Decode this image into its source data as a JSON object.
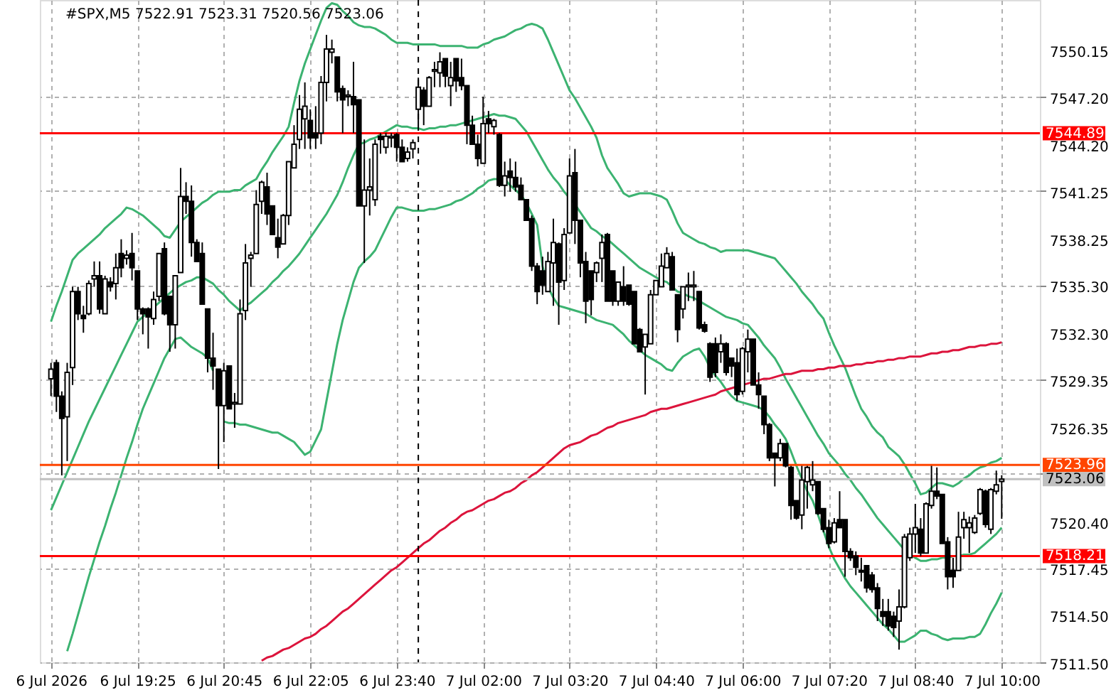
{
  "chart_data": {
    "type": "candlestick",
    "title": "#SPX,M5 7522.91 7523.31 7520.56 7523.06",
    "categories": [
      "6 Jul 2026",
      null,
      null,
      null,
      null,
      null,
      null,
      null,
      null,
      null,
      null,
      null,
      null,
      null,
      null,
      null,
      "6 Jul 19:25",
      null,
      null,
      null,
      null,
      null,
      null,
      null,
      null,
      null,
      null,
      null,
      null,
      null,
      null,
      null,
      "6 Jul 20:45",
      null,
      null,
      null,
      null,
      null,
      null,
      null,
      null,
      null,
      null,
      null,
      null,
      null,
      null,
      null,
      "6 Jul 22:05",
      null,
      null,
      null,
      null,
      null,
      null,
      null,
      null,
      null,
      null,
      null,
      null,
      null,
      null,
      null,
      "6 Jul 23:40",
      null,
      null,
      null,
      null,
      null,
      null,
      null,
      null,
      null,
      null,
      null,
      null,
      null,
      null,
      null,
      "7 Jul 02:00",
      null,
      null,
      null,
      null,
      null,
      null,
      null,
      null,
      null,
      null,
      null,
      null,
      null,
      null,
      null,
      "7 Jul 03:20",
      null,
      null,
      null,
      null,
      null,
      null,
      null,
      null,
      null,
      null,
      null,
      null,
      null,
      null,
      null,
      "7 Jul 04:40",
      null,
      null,
      null,
      null,
      null,
      null,
      null,
      null,
      null,
      null,
      null,
      null,
      null,
      null,
      null,
      "7 Jul 06:00",
      null,
      null,
      null,
      null,
      null,
      null,
      null,
      null,
      null,
      null,
      null,
      null,
      null,
      null,
      null,
      "7 Jul 07:20",
      null,
      null,
      null,
      null,
      null,
      null,
      null,
      null,
      null,
      null,
      null,
      null,
      null,
      null,
      null,
      "7 Jul 08:40",
      null,
      null,
      null,
      null,
      null,
      null,
      null,
      null,
      null,
      null,
      null,
      null,
      null,
      null,
      null,
      "7 Jul 10:00"
    ],
    "ohlc": [
      [
        7529.4,
        7530.4,
        7528.3,
        7530.0
      ],
      [
        7530.4,
        7530.6,
        7527.3,
        7528.3
      ],
      [
        7528.3,
        7528.6,
        7523.3,
        7526.9
      ],
      [
        7527.0,
        7530.4,
        7524.2,
        7529.8
      ],
      [
        7530.1,
        7535.2,
        7529.0,
        7534.9
      ],
      [
        7534.9,
        7535.2,
        7533.1,
        7533.5
      ],
      [
        7533.4,
        7534.0,
        7532.3,
        7533.2
      ],
      [
        7533.5,
        7535.6,
        7533.4,
        7535.4
      ],
      [
        7535.7,
        7536.8,
        7535.2,
        7535.9
      ],
      [
        7535.9,
        7536.8,
        7533.5,
        7533.8
      ],
      [
        7533.5,
        7535.9,
        7533.5,
        7535.7
      ],
      [
        7535.5,
        7535.8,
        7534.9,
        7535.2
      ],
      [
        7535.4,
        7537.3,
        7534.4,
        7536.4
      ],
      [
        7537.3,
        7538.2,
        7535.8,
        7536.4
      ],
      [
        7537.0,
        7537.5,
        7536.6,
        7537.2
      ],
      [
        7537.3,
        7538.6,
        7535.6,
        7536.4
      ],
      [
        7536.2,
        7536.2,
        7533.1,
        7533.8
      ],
      [
        7533.8,
        7533.9,
        7532.2,
        7533.5
      ],
      [
        7533.8,
        7533.9,
        7531.3,
        7533.3
      ],
      [
        7533.2,
        7534.9,
        7532.8,
        7534.4
      ],
      [
        7534.6,
        7537.3,
        7534.3,
        7537.3
      ],
      [
        7537.6,
        7538.0,
        7533.4,
        7533.5
      ],
      [
        7534.6,
        7534.6,
        7531.1,
        7532.8
      ],
      [
        7532.8,
        7535.9,
        7531.3,
        7535.9
      ],
      [
        7536.1,
        7542.7,
        7536.1,
        7540.9
      ],
      [
        7540.9,
        7541.8,
        7539.8,
        7540.6
      ],
      [
        7540.6,
        7541.6,
        7537.1,
        7538.0
      ],
      [
        7538.0,
        7538.2,
        7536.8,
        7536.8
      ],
      [
        7537.3,
        7538.0,
        7534.1,
        7534.1
      ],
      [
        7533.8,
        7533.8,
        7529.8,
        7530.7
      ],
      [
        7530.7,
        7532.3,
        7528.7,
        7530.2
      ],
      [
        7530.0,
        7530.0,
        7523.7,
        7527.7
      ],
      [
        7527.7,
        7530.4,
        7525.4,
        7529.9
      ],
      [
        7530.2,
        7530.2,
        7527.5,
        7527.5
      ],
      [
        7527.8,
        7528.5,
        7526.3,
        7527.9
      ],
      [
        7527.8,
        7534.4,
        7527.8,
        7533.5
      ],
      [
        7533.7,
        7537.9,
        7533.1,
        7536.7
      ],
      [
        7537.0,
        7537.4,
        7535.2,
        7537.2
      ],
      [
        7537.3,
        7541.3,
        7537.3,
        7540.4
      ],
      [
        7540.6,
        7541.9,
        7539.8,
        7541.8
      ],
      [
        7541.5,
        7542.4,
        7539.1,
        7539.8
      ],
      [
        7540.3,
        7540.3,
        7538.5,
        7538.5
      ],
      [
        7538.3,
        7539.5,
        7537.0,
        7537.7
      ],
      [
        7537.9,
        7539.8,
        7537.9,
        7539.7
      ],
      [
        7539.7,
        7543.1,
        7539.1,
        7543.1
      ],
      [
        7542.7,
        7545.4,
        7542.7,
        7544.2
      ],
      [
        7544.5,
        7547.3,
        7543.9,
        7546.4
      ],
      [
        7545.8,
        7548.1,
        7543.9,
        7546.6
      ],
      [
        7545.7,
        7546.4,
        7543.9,
        7544.6
      ],
      [
        7544.9,
        7546.6,
        7543.9,
        7544.6
      ],
      [
        7544.9,
        7548.5,
        7544.2,
        7548.1
      ],
      [
        7548.1,
        7551.1,
        7546.9,
        7550.2
      ],
      [
        7550.0,
        7550.8,
        7549.3,
        7550.2
      ],
      [
        7549.7,
        7549.7,
        7546.9,
        7547.5
      ],
      [
        7547.7,
        7547.9,
        7544.9,
        7547.0
      ],
      [
        7547.2,
        7547.6,
        7546.6,
        7547.3
      ],
      [
        7547.2,
        7549.4,
        7544.9,
        7546.7
      ],
      [
        7547.0,
        7547.0,
        7540.3,
        7540.3
      ],
      [
        7540.3,
        7544.5,
        7536.7,
        7541.3
      ],
      [
        7541.3,
        7543.3,
        7539.7,
        7541.5
      ],
      [
        7540.7,
        7544.5,
        7540.3,
        7544.2
      ],
      [
        7544.7,
        7544.9,
        7543.6,
        7544.5
      ],
      [
        7544.0,
        7544.9,
        7543.6,
        7544.7
      ],
      [
        7544.6,
        7544.9,
        7544.0,
        7544.7
      ],
      [
        7544.8,
        7544.9,
        7543.1,
        7544.0
      ],
      [
        7544.0,
        7544.5,
        7543.1,
        7543.1
      ],
      [
        7543.3,
        7544.0,
        7543.1,
        7543.7
      ],
      [
        7543.9,
        7544.5,
        7543.3,
        7544.3
      ],
      [
        7546.4,
        7548.4,
        7545.4,
        7547.8
      ],
      [
        7547.6,
        7547.8,
        7545.4,
        7546.6
      ],
      [
        7546.6,
        7548.5,
        7546.6,
        7548.4
      ],
      [
        7548.8,
        7549.4,
        7547.8,
        7548.9
      ],
      [
        7548.7,
        7550.0,
        7547.8,
        7549.4
      ],
      [
        7549.6,
        7549.6,
        7547.8,
        7548.5
      ],
      [
        7547.9,
        7549.4,
        7546.6,
        7548.4
      ],
      [
        7549.6,
        7549.6,
        7547.5,
        7548.2
      ],
      [
        7548.4,
        7549.6,
        7547.6,
        7547.9
      ],
      [
        7547.9,
        7547.9,
        7544.2,
        7545.4
      ],
      [
        7545.4,
        7546.0,
        7544.2,
        7544.2
      ],
      [
        7544.2,
        7544.8,
        7542.8,
        7543.3
      ],
      [
        7543.0,
        7547.2,
        7543.0,
        7545.5
      ],
      [
        7545.8,
        7546.3,
        7544.9,
        7545.5
      ],
      [
        7545.3,
        7545.8,
        7544.8,
        7545.7
      ],
      [
        7544.8,
        7544.9,
        7541.5,
        7541.6
      ],
      [
        7541.6,
        7543.1,
        7540.9,
        7542.2
      ],
      [
        7542.5,
        7543.3,
        7541.2,
        7542.1
      ],
      [
        7542.1,
        7543.1,
        7541.2,
        7541.5
      ],
      [
        7541.6,
        7542.1,
        7540.7,
        7540.7
      ],
      [
        7540.7,
        7540.7,
        7539.4,
        7539.4
      ],
      [
        7539.5,
        7539.7,
        7536.2,
        7536.5
      ],
      [
        7536.5,
        7536.7,
        7534.1,
        7534.9
      ],
      [
        7536.2,
        7537.1,
        7534.7,
        7535.3
      ],
      [
        7534.9,
        7537.4,
        7534.9,
        7536.8
      ],
      [
        7536.7,
        7539.5,
        7534.0,
        7538.0
      ],
      [
        7537.9,
        7538.0,
        7532.8,
        7535.5
      ],
      [
        7535.6,
        7538.9,
        7535.0,
        7538.5
      ],
      [
        7538.6,
        7543.3,
        7538.6,
        7542.2
      ],
      [
        7542.4,
        7543.9,
        7537.9,
        7539.4
      ],
      [
        7539.4,
        7539.4,
        7535.8,
        7536.7
      ],
      [
        7536.8,
        7537.4,
        7532.9,
        7534.3
      ],
      [
        7536.2,
        7536.2,
        7533.4,
        7534.4
      ],
      [
        7536.1,
        7536.8,
        7535.5,
        7536.7
      ],
      [
        7537.0,
        7538.5,
        7535.5,
        7538.0
      ],
      [
        7538.5,
        7538.6,
        7534.3,
        7534.3
      ],
      [
        7536.2,
        7536.2,
        7534.0,
        7534.3
      ],
      [
        7534.3,
        7535.5,
        7534.0,
        7535.5
      ],
      [
        7535.2,
        7536.5,
        7534.0,
        7534.3
      ],
      [
        7535.3,
        7535.3,
        7534.0,
        7534.1
      ],
      [
        7534.9,
        7534.9,
        7531.6,
        7531.6
      ],
      [
        7532.5,
        7532.6,
        7531.1,
        7531.1
      ],
      [
        7531.4,
        7532.2,
        7528.4,
        7532.2
      ],
      [
        7531.6,
        7535.0,
        7531.6,
        7534.7
      ],
      [
        7534.7,
        7535.6,
        7534.7,
        7535.6
      ],
      [
        7535.2,
        7537.3,
        7535.2,
        7536.5
      ],
      [
        7536.4,
        7537.7,
        7536.4,
        7537.3
      ],
      [
        7537.1,
        7537.4,
        7535.0,
        7535.0
      ],
      [
        7534.7,
        7534.7,
        7531.7,
        7532.5
      ],
      [
        7533.8,
        7535.2,
        7533.2,
        7535.2
      ],
      [
        7535.2,
        7536.1,
        7534.3,
        7535.3
      ],
      [
        7535.2,
        7536.2,
        7534.3,
        7535.3
      ],
      [
        7534.9,
        7534.9,
        7532.5,
        7532.6
      ],
      [
        7532.8,
        7533.0,
        7532.3,
        7532.4
      ],
      [
        7531.6,
        7531.7,
        7529.2,
        7529.5
      ],
      [
        7531.6,
        7532.0,
        7529.5,
        7529.8
      ],
      [
        7531.1,
        7532.2,
        7530.4,
        7531.6
      ],
      [
        7531.6,
        7531.7,
        7529.6,
        7529.8
      ],
      [
        7530.7,
        7530.7,
        7529.5,
        7530.2
      ],
      [
        7530.4,
        7531.3,
        7528.0,
        7528.4
      ],
      [
        7528.6,
        7531.4,
        7528.4,
        7531.3
      ],
      [
        7531.1,
        7532.5,
        7529.8,
        7531.9
      ],
      [
        7531.9,
        7531.9,
        7529.0,
        7529.0
      ],
      [
        7529.0,
        7529.8,
        7527.5,
        7528.4
      ],
      [
        7528.3,
        7528.3,
        7525.9,
        7526.5
      ],
      [
        7526.5,
        7526.6,
        7524.2,
        7524.4
      ],
      [
        7524.7,
        7524.7,
        7522.6,
        7524.4
      ],
      [
        7524.4,
        7525.6,
        7524.2,
        7525.3
      ],
      [
        7525.3,
        7525.3,
        7523.8,
        7523.9
      ],
      [
        7523.8,
        7523.9,
        7520.5,
        7521.4
      ],
      [
        7521.7,
        7521.7,
        7520.5,
        7520.6
      ],
      [
        7520.8,
        7523.9,
        7519.9,
        7523.0
      ],
      [
        7522.9,
        7523.9,
        7521.2,
        7523.8
      ],
      [
        7522.7,
        7524.2,
        7522.3,
        7523.0
      ],
      [
        7522.9,
        7522.9,
        7520.8,
        7520.9
      ],
      [
        7521.2,
        7521.2,
        7519.7,
        7519.9
      ],
      [
        7520.0,
        7520.5,
        7518.7,
        7519.0
      ],
      [
        7519.1,
        7520.6,
        7519.0,
        7520.3
      ],
      [
        7520.5,
        7522.3,
        7520.0,
        7520.0
      ],
      [
        7520.5,
        7520.5,
        7516.9,
        7518.5
      ],
      [
        7518.5,
        7518.7,
        7517.9,
        7518.1
      ],
      [
        7518.2,
        7518.5,
        7517.0,
        7517.5
      ],
      [
        7517.3,
        7518.1,
        7516.6,
        7517.2
      ],
      [
        7517.6,
        7517.6,
        7515.9,
        7516.2
      ],
      [
        7517.0,
        7517.2,
        7515.9,
        7516.1
      ],
      [
        7516.2,
        7516.5,
        7514.1,
        7514.9
      ],
      [
        7514.7,
        7515.5,
        7513.8,
        7514.4
      ],
      [
        7514.7,
        7515.5,
        7513.5,
        7513.8
      ],
      [
        7514.4,
        7514.7,
        7513.1,
        7513.7
      ],
      [
        7514.1,
        7516.1,
        7512.3,
        7515.0
      ],
      [
        7515.0,
        7519.6,
        7514.9,
        7519.4
      ],
      [
        7518.1,
        7520.0,
        7517.9,
        7519.6
      ],
      [
        7519.6,
        7521.5,
        7518.4,
        7520.0
      ],
      [
        7519.9,
        7520.6,
        7518.2,
        7518.4
      ],
      [
        7518.4,
        7521.6,
        7518.4,
        7521.5
      ],
      [
        7521.4,
        7523.9,
        7521.2,
        7522.3
      ],
      [
        7522.3,
        7523.8,
        7521.8,
        7522.0
      ],
      [
        7522.1,
        7522.1,
        7519.0,
        7519.0
      ],
      [
        7519.1,
        7519.4,
        7516.1,
        7516.9
      ],
      [
        7517.3,
        7518.1,
        7516.2,
        7516.9
      ],
      [
        7517.3,
        7521.0,
        7517.3,
        7519.4
      ],
      [
        7520.0,
        7521.0,
        7519.3,
        7520.5
      ],
      [
        7520.0,
        7520.7,
        7518.4,
        7520.3
      ],
      [
        7519.7,
        7520.8,
        7519.6,
        7520.6
      ],
      [
        7520.9,
        7522.5,
        7520.8,
        7522.4
      ],
      [
        7522.3,
        7522.4,
        7520.0,
        7520.2
      ],
      [
        7519.9,
        7522.5,
        7519.6,
        7522.4
      ],
      [
        7522.3,
        7523.6,
        7522.1,
        7522.7
      ],
      [
        7522.91,
        7523.31,
        7520.56,
        7523.06
      ]
    ],
    "series": [
      {
        "type": "line",
        "color": "#3cb371",
        "values": [
          7533.0,
          7534.0,
          7534.9,
          7535.9,
          7536.9,
          7537.3,
          7537.6,
          7537.9,
          7538.2,
          7538.5,
          7538.9,
          7539.2,
          7539.5,
          7539.8,
          7540.2,
          7540.1,
          7539.9,
          7539.7,
          7539.4,
          7539.1,
          7538.8,
          7538.4,
          7538.3,
          7538.8,
          7539.3,
          7539.6,
          7539.9,
          7540.2,
          7540.5,
          7540.7,
          7541.0,
          7541.2,
          7541.2,
          7541.2,
          7541.3,
          7541.3,
          7541.6,
          7541.8,
          7542.0,
          7542.6,
          7543.1,
          7543.7,
          7544.2,
          7544.7,
          7545.3,
          7546.8,
          7548.2,
          7549.3,
          7550.2,
          7551.1,
          7552.0,
          7552.8,
          7553.1,
          7553.0,
          7552.6,
          7552.3,
          7551.9,
          7551.7,
          7551.6,
          7551.6,
          7551.5,
          7551.3,
          7551.1,
          7550.8,
          7550.6,
          7550.6,
          7550.6,
          7550.5,
          7550.5,
          7550.5,
          7550.5,
          7550.5,
          7550.4,
          7550.4,
          7550.4,
          7550.4,
          7550.4,
          7550.3,
          7550.3,
          7550.3,
          7550.5,
          7550.6,
          7550.8,
          7550.9,
          7551.0,
          7551.2,
          7551.4,
          7551.5,
          7551.7,
          7551.8,
          7551.7,
          7551.5,
          7550.8,
          7550.0,
          7549.2,
          7548.4,
          7547.6,
          7547.1,
          7546.5,
          7545.9,
          7545.3,
          7544.6,
          7543.5,
          7542.7,
          7542.2,
          7541.7,
          7541.1,
          7540.9,
          7541.0,
          7541.1,
          7541.1,
          7541.1,
          7541.0,
          7540.9,
          7540.7,
          7540.0,
          7539.2,
          7538.6,
          7538.4,
          7538.2,
          7538.0,
          7537.9,
          7537.7,
          7537.6,
          7537.4,
          7537.5,
          7537.5,
          7537.5,
          7537.5,
          7537.5,
          7537.4,
          7537.3,
          7537.2,
          7537.1,
          7537.0,
          7536.6,
          7536.2,
          7535.8,
          7535.4,
          7534.9,
          7534.5,
          7534.1,
          7533.6,
          7533.2,
          7532.3,
          7531.5,
          7530.8,
          7530.1,
          7529.2,
          7528.3,
          7527.5,
          7527.0,
          7526.4,
          7526.0,
          7525.7,
          7525.1,
          7524.8,
          7524.5,
          7524.0,
          7523.4,
          7522.8,
          7522.1,
          7522.2,
          7522.5,
          7522.8,
          7522.8,
          7522.7,
          7522.6,
          7522.8,
          7523.1,
          7523.3,
          7523.6,
          7523.8,
          7523.9,
          7524.1,
          7524.2,
          7524.4
        ]
      },
      {
        "type": "line",
        "color": "#3cb371",
        "values": [
          7521.1,
          7521.9,
          7522.7,
          7523.5,
          7524.3,
          7525.1,
          7525.9,
          7526.7,
          7527.4,
          7528.1,
          7528.8,
          7529.5,
          7530.2,
          7530.9,
          7531.6,
          7532.3,
          7533.0,
          7533.3,
          7533.6,
          7533.9,
          7534.2,
          7534.5,
          7534.8,
          7535.1,
          7535.3,
          7535.5,
          7535.6,
          7535.8,
          7535.8,
          7535.6,
          7535.4,
          7535.0,
          7534.7,
          7534.3,
          7534.0,
          7533.7,
          7534.0,
          7534.2,
          7534.5,
          7534.8,
          7535.1,
          7535.5,
          7535.8,
          7536.2,
          7536.5,
          7536.9,
          7537.3,
          7537.8,
          7538.3,
          7538.8,
          7539.3,
          7539.8,
          7540.4,
          7541.0,
          7541.8,
          7542.7,
          7543.5,
          7544.2,
          7544.3,
          7544.5,
          7544.6,
          7544.8,
          7545.0,
          7545.2,
          7545.4,
          7545.3,
          7545.3,
          7545.2,
          7545.2,
          7545.1,
          7545.2,
          7545.2,
          7545.3,
          7545.3,
          7545.4,
          7545.4,
          7545.5,
          7545.6,
          7545.7,
          7545.8,
          7545.9,
          7546.0,
          7546.1,
          7546.0,
          7546.0,
          7545.9,
          7545.8,
          7545.4,
          7545.0,
          7544.4,
          7543.8,
          7543.2,
          7542.6,
          7542.1,
          7541.7,
          7541.2,
          7540.8,
          7540.4,
          7539.9,
          7539.4,
          7538.9,
          7538.7,
          7538.4,
          7538.2,
          7537.9,
          7537.6,
          7537.3,
          7537.0,
          7536.7,
          7536.4,
          7536.2,
          7536.0,
          7535.8,
          7535.6,
          7535.5,
          7535.2,
          7534.9,
          7534.8,
          7534.6,
          7534.5,
          7534.3,
          7534.1,
          7533.9,
          7533.7,
          7533.5,
          7533.3,
          7533.2,
          7533.1,
          7532.9,
          7532.8,
          7532.4,
          7532.0,
          7531.5,
          7531.1,
          7530.7,
          7530.1,
          7529.4,
          7528.8,
          7528.2,
          7527.6,
          7527.0,
          7526.4,
          7525.8,
          7525.3,
          7524.7,
          7524.3,
          7523.9,
          7523.4,
          7523.0,
          7522.5,
          7522.1,
          7521.6,
          7521.1,
          7520.6,
          7520.2,
          7519.8,
          7519.4,
          7519.0,
          7518.6,
          7518.3,
          7518.1,
          7517.9,
          7517.9,
          7518.0,
          7518.0,
          7518.1,
          7518.1,
          7518.2,
          7518.2,
          7518.3,
          7518.3,
          7518.4,
          7518.7,
          7519.0,
          7519.3,
          7519.6,
          7520.0
        ]
      },
      {
        "type": "line",
        "color": "#3cb371",
        "values": [
          null,
          null,
          null,
          7512.2,
          7513.3,
          7514.5,
          7515.7,
          7516.9,
          7518.0,
          7519.1,
          7520.1,
          7521.2,
          7522.2,
          7523.3,
          7524.4,
          7525.4,
          7526.5,
          7527.5,
          7528.3,
          7529.1,
          7529.9,
          7530.7,
          7531.3,
          7531.9,
          7532.0,
          7531.7,
          7531.4,
          7531.2,
          7531.0,
          7530.7,
          7529.9,
          null,
          7526.7,
          7526.6,
          7526.6,
          7526.5,
          7526.5,
          7526.4,
          7526.3,
          7526.2,
          7526.1,
          7526.0,
          7526.0,
          7525.8,
          7525.6,
          7525.4,
          7525.0,
          7524.6,
          7524.8,
          7525.5,
          7526.2,
          7528.0,
          7529.8,
          7531.6,
          7533.1,
          7534.3,
          7535.5,
          7536.4,
          7536.8,
          7537.1,
          7537.5,
          7538.2,
          7538.9,
          7539.6,
          7540.2,
          7540.2,
          7540.1,
          7540.0,
          7540.0,
          7540.0,
          7540.1,
          7540.1,
          7540.2,
          7540.3,
          7540.4,
          7540.6,
          7540.7,
          7540.9,
          7541.1,
          7541.4,
          7541.6,
          7541.9,
          7542.0,
          7542.0,
          7542.0,
          7541.6,
          7541.3,
          7541.0,
          7540.5,
          7539.8,
          7539.1,
          7536.5,
          7535.2,
          7534.5,
          7534.0,
          7533.9,
          7533.8,
          7533.7,
          7533.6,
          7533.5,
          7533.3,
          7533.1,
          7533.0,
          7532.9,
          7532.8,
          7532.5,
          7532.2,
          7531.8,
          7531.5,
          7531.2,
          7530.9,
          7530.7,
          7530.5,
          7530.3,
          7530.0,
          7529.9,
          7530.4,
          7530.8,
          7531.0,
          7531.2,
          7531.3,
          7530.8,
          7530.1,
          7529.6,
          7529.2,
          7528.7,
          7528.3,
          7528.0,
          7527.9,
          7527.8,
          7527.7,
          7527.6,
          7527.4,
          7527.0,
          7526.5,
          7526.1,
          7525.6,
          7524.8,
          7523.9,
          7523.1,
          7522.3,
          7521.7,
          7520.8,
          7519.8,
          7518.8,
          7518.0,
          7517.4,
          7516.8,
          7516.3,
          7515.9,
          7515.5,
          7515.1,
          7514.7,
          7514.3,
          7513.9,
          7513.6,
          7513.2,
          7512.8,
          7512.8,
          7513.0,
          7513.2,
          7513.5,
          7513.5,
          7513.3,
          7513.2,
          7513.0,
          7512.9,
          7513.0,
          7513.0,
          7513.0,
          7513.1,
          7513.1,
          7513.3,
          7513.9,
          7514.6,
          7515.2,
          7515.9
        ]
      },
      {
        "type": "line",
        "color": "#dc143c",
        "values": [
          null,
          null,
          null,
          null,
          null,
          null,
          null,
          null,
          null,
          null,
          null,
          null,
          null,
          null,
          null,
          null,
          null,
          null,
          null,
          null,
          null,
          null,
          null,
          null,
          null,
          null,
          null,
          null,
          null,
          null,
          null,
          null,
          null,
          null,
          null,
          null,
          null,
          null,
          null,
          7511.6,
          7511.8,
          7511.9,
          7512.1,
          7512.3,
          7512.4,
          7512.6,
          7512.8,
          7513.0,
          7513.1,
          7513.3,
          7513.6,
          7513.8,
          7514.1,
          7514.4,
          7514.7,
          7514.9,
          7515.2,
          7515.5,
          7515.8,
          7516.1,
          7516.4,
          7516.7,
          7517.0,
          7517.3,
          7517.5,
          7517.8,
          7518.1,
          7518.4,
          7518.7,
          7519.0,
          7519.2,
          7519.5,
          7519.8,
          7520.0,
          7520.3,
          7520.5,
          7520.8,
          7521.0,
          7521.1,
          7521.3,
          7521.5,
          7521.7,
          7521.8,
          7522.0,
          7522.2,
          7522.3,
          7522.5,
          7522.8,
          7523.0,
          7523.3,
          7523.5,
          7523.8,
          7524.1,
          7524.4,
          7524.7,
          7525.0,
          7525.2,
          7525.3,
          7525.4,
          7525.6,
          7525.8,
          7525.9,
          7526.1,
          7526.3,
          7526.4,
          7526.6,
          7526.7,
          7526.8,
          7526.9,
          7527.0,
          7527.1,
          7527.3,
          7527.4,
          7527.5,
          7527.5,
          7527.6,
          7527.7,
          7527.8,
          7527.9,
          7528.0,
          7528.1,
          7528.2,
          7528.3,
          7528.4,
          7528.6,
          7528.7,
          7528.8,
          7528.9,
          7529.0,
          7529.1,
          7529.2,
          7529.3,
          7529.4,
          7529.4,
          7529.5,
          7529.6,
          7529.7,
          7529.7,
          7529.8,
          7529.9,
          7529.9,
          7529.9,
          7530.0,
          7530.0,
          7530.1,
          7530.1,
          7530.2,
          7530.2,
          7530.2,
          7530.3,
          7530.3,
          7530.4,
          7530.4,
          7530.5,
          7530.5,
          7530.6,
          7530.6,
          7530.7,
          7530.7,
          7530.8,
          7530.8,
          7530.8,
          7530.9,
          7531.0,
          7531.0,
          7531.1,
          7531.1,
          7531.2,
          7531.2,
          7531.3,
          7531.4,
          7531.4,
          7531.5,
          7531.5,
          7531.6,
          7531.6,
          7531.7
        ]
      }
    ],
    "ylim": [
      7511.5,
      7553.3
    ],
    "yticks": [
      7550.15,
      {
        "value": 7547.2,
        "label": "7547.20"
      },
      {
        "value": 7544.2,
        "label": "7544.20"
      },
      7541.25,
      7538.25,
      {
        "value": 7535.3,
        "label": "7535.30"
      },
      {
        "value": 7532.3,
        "label": "7532.30"
      },
      7529.35,
      7526.35,
      {
        "value": 7523.4,
        "label": null
      },
      {
        "value": 7520.4,
        "label": "7520.40"
      },
      7517.45,
      {
        "value": 7514.5,
        "label": "7514.50"
      },
      {
        "value": 7511.5,
        "label": "7511.50"
      }
    ],
    "ref_lines": [
      {
        "axis": "y",
        "value": 7544.89,
        "label": "7544.89",
        "color": "#ff0000"
      },
      {
        "axis": "y",
        "value": 7518.21,
        "label": "7518.21",
        "color": "#ff0000"
      },
      {
        "axis": "y",
        "value": 7523.96,
        "label": "7523.96",
        "color": "#ff4500"
      },
      {
        "axis": "y",
        "value": 7523.06,
        "label": "7523.06",
        "color": "#c0c0c0"
      }
    ],
    "grid": true
  }
}
